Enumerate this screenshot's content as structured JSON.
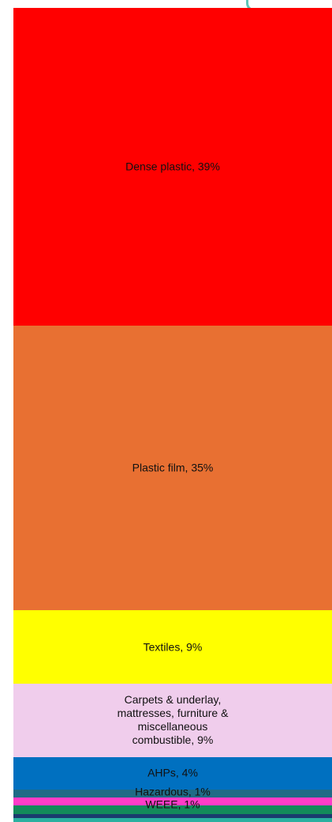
{
  "chart_data": {
    "type": "bar",
    "stacked": true,
    "orientation": "vertical",
    "unit": "%",
    "categories": [
      "Dense plastic",
      "Plastic film",
      "Textiles",
      "Carpets & underlay, mattresses, furniture & miscellaneous combustible",
      "AHPs",
      "Hazardous",
      "WEEE",
      "",
      "",
      ""
    ],
    "values": [
      39,
      35,
      9,
      9,
      4,
      1,
      1,
      1,
      0.5,
      0.5
    ],
    "colors": [
      "#ff0000",
      "#e87032",
      "#ffff00",
      "#f0cdec",
      "#0070c0",
      "#1f6b86",
      "#ff3cc8",
      "#138a5a",
      "#1a3a6e",
      "#2ab0a0"
    ],
    "labels": [
      "Dense plastic, 39%",
      "Plastic film, 35%",
      "Textiles, 9%",
      "Carpets & underlay,\nmattresses, furniture &\nmiscellaneous\ncombustible, 9%",
      "AHPs, 4%",
      "Hazardous, 1%",
      "WEEE, 1%",
      "",
      "",
      ""
    ]
  }
}
